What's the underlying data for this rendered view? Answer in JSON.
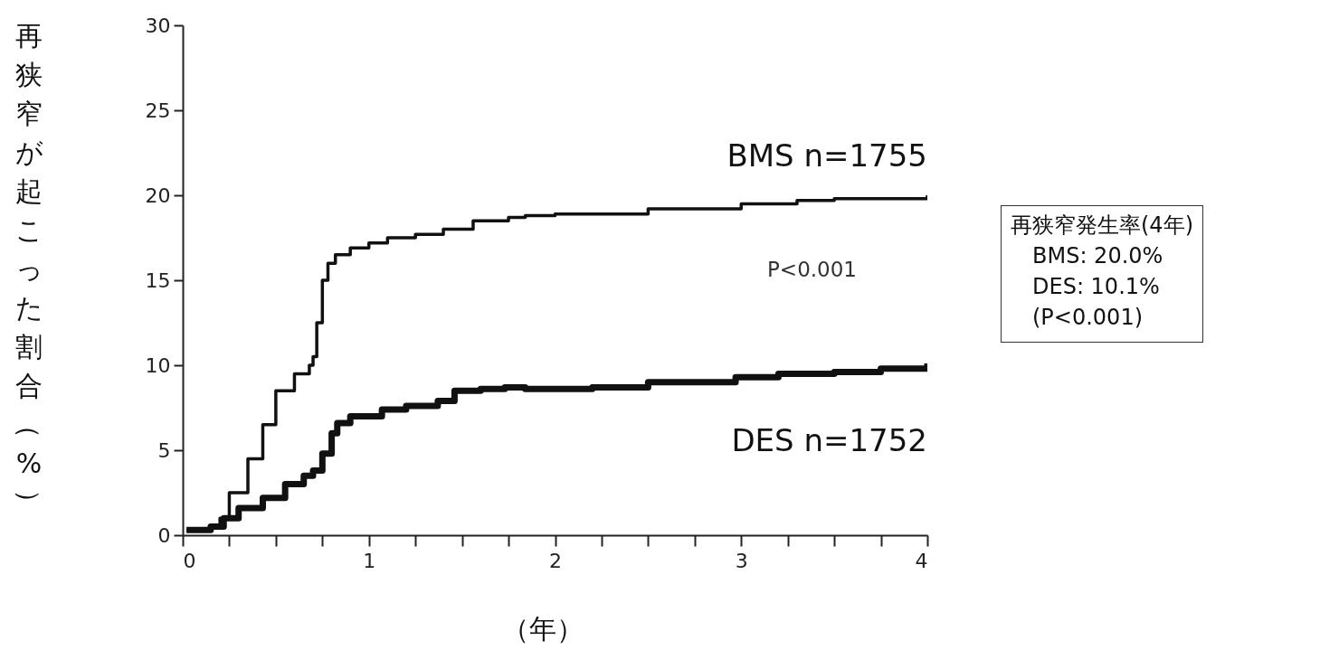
{
  "chart_data": {
    "type": "step",
    "xlabel": "（年）",
    "ylabel": "再狭窄が起こった割合（%）",
    "xlim": [
      0,
      4
    ],
    "ylim": [
      0,
      30
    ],
    "xticks": [
      0,
      {
        "value": 0.25,
        "label": null
      },
      {
        "value": 0.5,
        "label": null
      },
      {
        "value": 0.75,
        "label": null
      },
      1,
      {
        "value": 1.25,
        "label": null
      },
      {
        "value": 1.5,
        "label": null
      },
      {
        "value": 1.75,
        "label": null
      },
      2,
      {
        "value": 2.25,
        "label": null
      },
      {
        "value": 2.5,
        "label": null
      },
      {
        "value": 2.75,
        "label": null
      },
      3,
      {
        "value": 3.25,
        "label": null
      },
      {
        "value": 3.5,
        "label": null
      },
      {
        "value": 3.75,
        "label": null
      },
      4
    ],
    "yticks": [
      0,
      5,
      10,
      15,
      20,
      25,
      30
    ],
    "grid": false,
    "series": [
      {
        "name": "BMS  n=1755",
        "color": "#111111",
        "x": [
          0.02,
          0.15,
          0.2,
          0.25,
          0.35,
          0.43,
          0.5,
          0.6,
          0.68,
          0.7,
          0.72,
          0.75,
          0.78,
          0.82,
          0.9,
          1.0,
          1.1,
          1.25,
          1.4,
          1.56,
          1.75,
          1.84,
          2.0,
          2.5,
          3.0,
          3.3,
          3.5,
          4.0
        ],
        "values": [
          0.3,
          0.5,
          1.0,
          2.5,
          4.5,
          6.5,
          8.5,
          9.5,
          10.0,
          10.5,
          12.5,
          15.0,
          16.0,
          16.5,
          16.9,
          17.2,
          17.5,
          17.7,
          18.0,
          18.5,
          18.7,
          18.8,
          18.9,
          19.2,
          19.5,
          19.7,
          19.8,
          20.0
        ]
      },
      {
        "name": "DES  n=1752",
        "color": "#111111",
        "x": [
          0.02,
          0.15,
          0.22,
          0.3,
          0.43,
          0.55,
          0.65,
          0.7,
          0.75,
          0.8,
          0.83,
          0.9,
          1.07,
          1.2,
          1.37,
          1.46,
          1.6,
          1.73,
          1.84,
          2.2,
          2.5,
          2.97,
          3.2,
          3.5,
          3.75,
          4.0
        ],
        "values": [
          0.3,
          0.5,
          1.0,
          1.6,
          2.2,
          3.0,
          3.5,
          3.8,
          4.8,
          6.0,
          6.6,
          7.0,
          7.4,
          7.6,
          7.9,
          8.5,
          8.6,
          8.7,
          8.6,
          8.7,
          9.0,
          9.3,
          9.5,
          9.6,
          9.8,
          10.1
        ]
      }
    ],
    "annotations": [
      "P<0.001",
      "再狭窄発生率(4年)\n　BMS: 20.0%\n　DES: 10.1%\n　(P<0.001)"
    ]
  }
}
